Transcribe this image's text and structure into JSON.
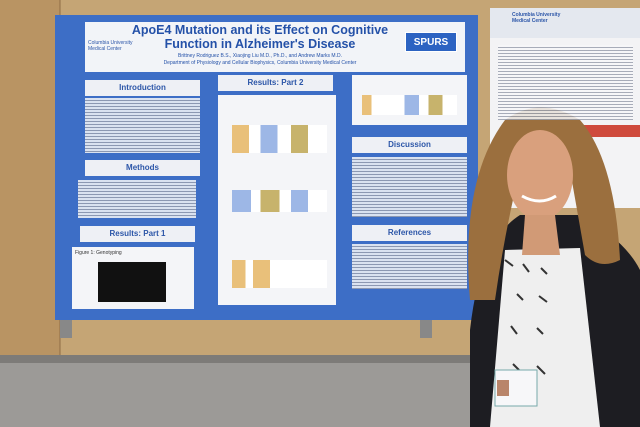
{
  "poster": {
    "logo": "Columbia University Medical Center",
    "title": "ApoE4 Mutation and its Effect on Cognitive Function in Alzheimer's Disease",
    "authors": "Brittney Rodriguez B.S., Xiaojing Liu M.D., Ph.D., and Andrew Marks M.D.",
    "department": "Department of Physiology and Cellular Biophysics, Columbia University Medical Center",
    "badge": "SPURS",
    "sections": {
      "introduction": "Introduction",
      "methods": "Methods",
      "results_1": "Results: Part 1",
      "results_2": "Results: Part 2",
      "discussion": "Discussion",
      "references": "References"
    },
    "figure_1": "Figure 1: Genotyping"
  },
  "side_poster": {
    "logo": "Columbia University Medical Center"
  }
}
